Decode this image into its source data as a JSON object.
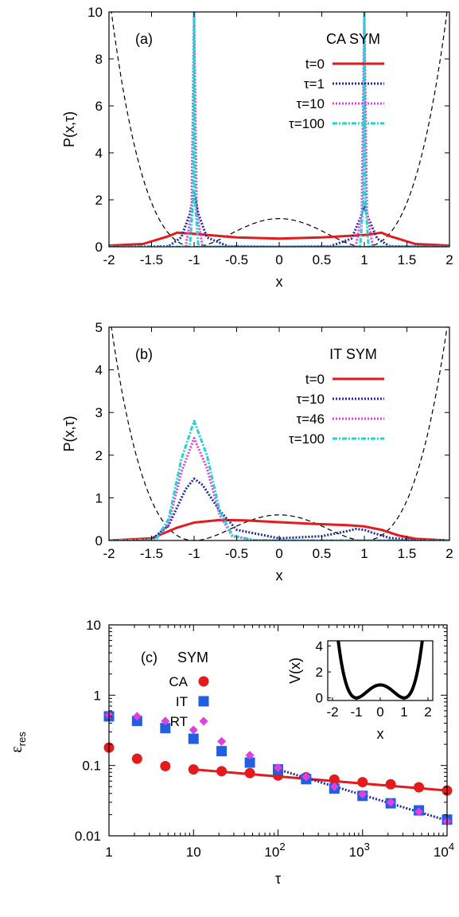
{
  "chart_data": [
    {
      "panel": "(a)",
      "type": "line",
      "title": "CA SYM",
      "xlabel": "x",
      "ylabel": "P(x,τ)",
      "xlim": [
        -2,
        2
      ],
      "ylim": [
        0,
        10
      ],
      "x_ticks": [
        "-2",
        "-1.5",
        "-1",
        "-0.5",
        "0",
        "0.5",
        "1",
        "1.5",
        "2"
      ],
      "y_ticks": [
        "0",
        "2",
        "4",
        "6",
        "8",
        "10"
      ],
      "legend_position": "top-right",
      "potential_curve": "dashed, V(x)=(x^2-1)^2 overlaid",
      "series": [
        {
          "name": "t=0",
          "color": "#e41a1c",
          "style": "solid",
          "x": [
            -2.0,
            -1.6,
            -1.3,
            -1.2,
            -1.0,
            -0.5,
            0.0,
            0.5,
            1.0,
            1.2,
            1.3,
            1.6,
            2.0
          ],
          "y": [
            0.05,
            0.12,
            0.45,
            0.6,
            0.55,
            0.4,
            0.35,
            0.4,
            0.5,
            0.6,
            0.45,
            0.12,
            0.05
          ]
        },
        {
          "name": "τ=1",
          "color": "#1f2aa6",
          "style": "dotted",
          "x": [
            -2.0,
            -1.3,
            -1.15,
            -1.05,
            -1.0,
            -0.95,
            -0.85,
            -0.6,
            0.0,
            0.6,
            0.85,
            0.95,
            1.0,
            1.05,
            1.15,
            1.3,
            2.0
          ],
          "y": [
            0.0,
            0.02,
            0.4,
            1.4,
            2.3,
            1.4,
            0.4,
            0.02,
            0.0,
            0.02,
            0.35,
            1.2,
            1.7,
            1.2,
            0.35,
            0.02,
            0.0
          ]
        },
        {
          "name": "τ=10",
          "color": "#e040e0",
          "style": "dotted",
          "x": [
            -2.0,
            -1.1,
            -1.03,
            -1.0,
            -0.97,
            -0.9,
            0.0,
            0.9,
            0.97,
            1.0,
            1.03,
            1.1,
            2.0
          ],
          "y": [
            0.0,
            0.0,
            1.5,
            10,
            1.5,
            0.0,
            0.0,
            0.0,
            1.5,
            10,
            1.5,
            0.0,
            0.0
          ]
        },
        {
          "name": "τ=100",
          "color": "#22d3d3",
          "style": "dash-dot",
          "x": [
            -2.0,
            -1.05,
            -1.01,
            -1.0,
            -0.99,
            -0.95,
            0.0,
            0.95,
            0.99,
            1.0,
            1.01,
            1.05,
            2.0
          ],
          "y": [
            0.0,
            0.0,
            2.0,
            10,
            2.0,
            0.0,
            0.0,
            0.0,
            2.0,
            10,
            2.0,
            0.0,
            0.0
          ]
        }
      ]
    },
    {
      "panel": "(b)",
      "type": "line",
      "title": "IT SYM",
      "xlabel": "x",
      "ylabel": "P(x,τ)",
      "xlim": [
        -2,
        2
      ],
      "ylim": [
        0,
        5
      ],
      "x_ticks": [
        "-2",
        "-1.5",
        "-1",
        "-0.5",
        "0",
        "0.5",
        "1",
        "1.5",
        "2"
      ],
      "y_ticks": [
        "0",
        "1",
        "2",
        "3",
        "4",
        "5"
      ],
      "legend_position": "top-right",
      "potential_curve": "dashed, V(x)=(x^2-1)^2/2 overlaid",
      "series": [
        {
          "name": "t=0",
          "color": "#e41a1c",
          "style": "solid",
          "x": [
            -2.0,
            -1.5,
            -1.2,
            -1.0,
            -0.7,
            -0.4,
            0.0,
            0.4,
            0.8,
            1.0,
            1.2,
            1.4,
            1.6,
            2.0
          ],
          "y": [
            0.0,
            0.05,
            0.3,
            0.42,
            0.48,
            0.47,
            0.43,
            0.39,
            0.36,
            0.33,
            0.25,
            0.12,
            0.04,
            0.0
          ]
        },
        {
          "name": "τ=10",
          "color": "#1f2aa6",
          "style": "dotted",
          "x": [
            -2.0,
            -1.5,
            -1.3,
            -1.1,
            -1.0,
            -0.9,
            -0.7,
            -0.5,
            0.0,
            0.5,
            0.8,
            0.9,
            1.0,
            1.1,
            1.3,
            1.6,
            2.0
          ],
          "y": [
            0.0,
            0.02,
            0.35,
            1.2,
            1.45,
            1.3,
            0.7,
            0.25,
            0.05,
            0.1,
            0.22,
            0.27,
            0.25,
            0.18,
            0.06,
            0.01,
            0.0
          ]
        },
        {
          "name": "τ=46",
          "color": "#e040e0",
          "style": "dotted",
          "x": [
            -2.0,
            -1.45,
            -1.3,
            -1.15,
            -1.0,
            -0.85,
            -0.7,
            -0.55,
            -0.3,
            0.0,
            2.0
          ],
          "y": [
            0.0,
            0.02,
            0.4,
            1.6,
            2.4,
            1.7,
            0.6,
            0.1,
            0.01,
            0.0,
            0.0
          ]
        },
        {
          "name": "τ=100",
          "color": "#22d3d3",
          "style": "dash-dot",
          "x": [
            -2.0,
            -1.45,
            -1.3,
            -1.15,
            -1.0,
            -0.85,
            -0.7,
            -0.55,
            -0.3,
            0.0,
            2.0
          ],
          "y": [
            0.0,
            0.02,
            0.5,
            1.9,
            2.8,
            2.0,
            0.7,
            0.12,
            0.01,
            0.0,
            0.0
          ]
        }
      ]
    },
    {
      "panel": "(c)",
      "type": "scatter",
      "title": "SYM",
      "xlabel": "τ",
      "ylabel": "ε",
      "ylabel_sub": "res",
      "x_scale": "log",
      "y_scale": "log",
      "xlim": [
        1,
        10000
      ],
      "ylim": [
        0.01,
        10
      ],
      "x_ticks": [
        {
          "base": "1",
          "exp": ""
        },
        {
          "base": "10",
          "exp": ""
        },
        {
          "base": "10",
          "exp": "2"
        },
        {
          "base": "10",
          "exp": "3"
        },
        {
          "base": "10",
          "exp": "4"
        }
      ],
      "y_ticks": [
        "0.01",
        "0.1",
        "1",
        "10"
      ],
      "legend_position": "top-left",
      "series": [
        {
          "name": "CA",
          "color": "#e41a1c",
          "marker": "circle",
          "x": [
            1,
            2.15,
            4.64,
            10,
            21.5,
            46.4,
            100,
            215,
            464,
            1000,
            2150,
            4640,
            10000
          ],
          "y": [
            0.18,
            0.125,
            0.098,
            0.088,
            0.083,
            0.078,
            0.072,
            0.068,
            0.063,
            0.058,
            0.054,
            0.049,
            0.044
          ]
        },
        {
          "name": "IT",
          "color": "#1f5fe0",
          "marker": "square",
          "x": [
            1,
            2.15,
            4.64,
            10,
            21.5,
            46.4,
            100,
            215,
            464,
            1000,
            2150,
            4640,
            10000
          ],
          "y": [
            0.5,
            0.43,
            0.34,
            0.24,
            0.16,
            0.11,
            0.088,
            0.064,
            0.047,
            0.037,
            0.029,
            0.023,
            0.017
          ]
        },
        {
          "name": "RT",
          "color": "#e040e0",
          "marker": "diamond",
          "x": [
            1,
            2.15,
            4.64,
            10,
            21.5,
            46.4,
            100,
            215,
            464,
            1000,
            2150,
            4640,
            10000
          ],
          "y": [
            0.52,
            0.5,
            0.43,
            0.32,
            0.22,
            0.14,
            0.093,
            0.069,
            0.05,
            0.039,
            0.03,
            0.022,
            0.016
          ]
        }
      ],
      "fits": [
        {
          "series": "CA",
          "color": "#e41a1c",
          "style": "solid",
          "x": [
            10,
            10000
          ],
          "y": [
            0.088,
            0.044
          ]
        },
        {
          "series": "IT",
          "color": "#1f2aa6",
          "style": "dotted",
          "x": [
            100,
            10000
          ],
          "y": [
            0.088,
            0.0165
          ]
        }
      ],
      "inset": {
        "type": "line",
        "xlabel": "x",
        "ylabel": "V(x)",
        "xlim": [
          -2.2,
          2.2
        ],
        "ylim": [
          -0.2,
          4.4
        ],
        "x_ticks": [
          "-2",
          "-1",
          "0",
          "1",
          "2"
        ],
        "y_ticks": [
          "0",
          "2",
          "4"
        ],
        "curve": "V(x)=(x^2-1)^2"
      }
    }
  ]
}
